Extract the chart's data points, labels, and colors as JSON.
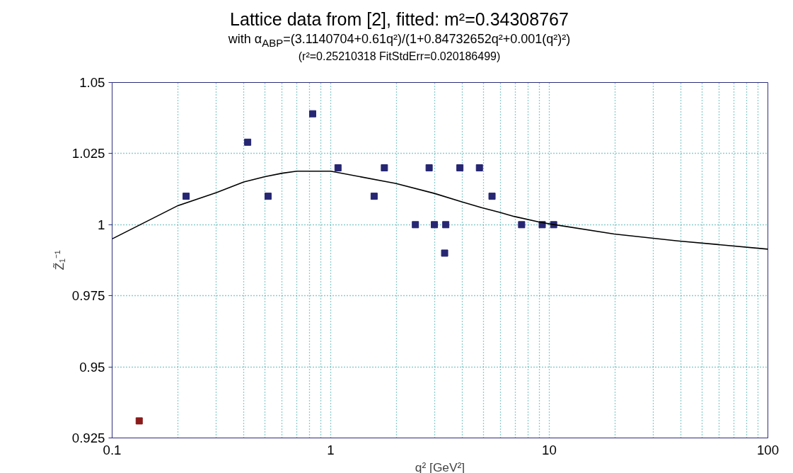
{
  "chart_data": {
    "type": "scatter",
    "title": "Lattice data from [2], fitted: m²=0.34308767",
    "subtitle": "with α$_{ABP}$=(3.1140704+0.61q²)/(1+0.84732652q²+0.001(q²)²)",
    "annotations": [
      "(r²=0.25210318  FitStdErr=0.020186499)"
    ],
    "xlabel": "q² [GeV²]",
    "ylabel": "Z̃₁⁻¹",
    "log": "x",
    "grid": true,
    "marker": "square",
    "xlim": [
      0.1,
      100
    ],
    "xticks": [
      0.1,
      {
        "value": 0.2,
        "label": null
      },
      {
        "value": 0.3,
        "label": null
      },
      {
        "value": 0.4,
        "label": null
      },
      {
        "value": 0.5,
        "label": null
      },
      {
        "value": 0.6,
        "label": null
      },
      {
        "value": 0.7,
        "label": null
      },
      {
        "value": 0.8,
        "label": null
      },
      {
        "value": 0.9,
        "label": null
      },
      1,
      {
        "value": 2,
        "label": null
      },
      {
        "value": 3,
        "label": null
      },
      {
        "value": 4,
        "label": null
      },
      {
        "value": 5,
        "label": null
      },
      {
        "value": 6,
        "label": null
      },
      {
        "value": 7,
        "label": null
      },
      {
        "value": 8,
        "label": null
      },
      {
        "value": 9,
        "label": null
      },
      10,
      {
        "value": 20,
        "label": null
      },
      {
        "value": 30,
        "label": null
      },
      {
        "value": 40,
        "label": null
      },
      {
        "value": 50,
        "label": null
      },
      {
        "value": 60,
        "label": null
      },
      {
        "value": 70,
        "label": null
      },
      {
        "value": 80,
        "label": null
      },
      {
        "value": 90,
        "label": null
      },
      100
    ],
    "ylim": [
      0.925,
      1.05
    ],
    "yticks": [
      0.925,
      0.95,
      0.975,
      1,
      1.025,
      1.05
    ],
    "series": [
      {
        "color": "#262673",
        "x": [
          0.218,
          0.417,
          0.517,
          0.827,
          1.08,
          1.58,
          1.76,
          2.44,
          2.82,
          2.98,
          3.36,
          3.32,
          3.9,
          4.79,
          5.47,
          7.47,
          9.28,
          10.47
        ],
        "values": [
          1.01,
          1.029,
          1.01,
          1.039,
          1.02,
          1.01,
          1.02,
          1.0,
          1.02,
          1.0,
          1.0,
          0.99,
          1.02,
          1.02,
          1.01,
          1.0,
          1.0,
          1.0
        ]
      },
      {
        "color": "#8b1a1a",
        "x": [
          0.133
        ],
        "values": [
          0.931
        ]
      },
      {
        "type": "line",
        "color": "#000000",
        "marker": "none",
        "x": [
          0.1,
          0.2,
          0.3,
          0.4,
          0.5,
          0.6,
          0.7,
          1.0,
          1.98,
          2.98,
          3.95,
          4.9,
          5.95,
          6.9,
          8.9,
          10,
          19.8,
          38.7,
          100
        ],
        "values": [
          0.995,
          1.0067,
          1.0113,
          1.015,
          1.0169,
          1.0181,
          1.0188,
          1.0188,
          1.0145,
          1.011,
          1.0081,
          1.006,
          1.0043,
          1.0029,
          1.001,
          1.0003,
          0.9967,
          0.9943,
          0.9914
        ]
      }
    ]
  }
}
